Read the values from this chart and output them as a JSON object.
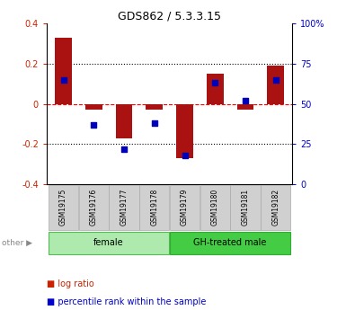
{
  "title": "GDS862 / 5.3.3.15",
  "samples": [
    "GSM19175",
    "GSM19176",
    "GSM19177",
    "GSM19178",
    "GSM19179",
    "GSM19180",
    "GSM19181",
    "GSM19182"
  ],
  "log_ratio": [
    0.33,
    -0.03,
    -0.17,
    -0.03,
    -0.27,
    0.15,
    -0.03,
    0.19
  ],
  "percentile": [
    65,
    37,
    22,
    38,
    18,
    63,
    52,
    65
  ],
  "groups": [
    {
      "label": "female",
      "start": 0,
      "end": 4,
      "color": "#aeeaae",
      "edge_color": "#55bb55"
    },
    {
      "label": "GH-treated male",
      "start": 4,
      "end": 8,
      "color": "#44cc44",
      "edge_color": "#33aa33"
    }
  ],
  "bar_color": "#aa1111",
  "dot_color": "#0000bb",
  "ylim_left": [
    -0.4,
    0.4
  ],
  "ylim_right": [
    0,
    100
  ],
  "yticks_left": [
    -0.4,
    -0.2,
    0.0,
    0.2,
    0.4
  ],
  "ytick_labels_left": [
    "-0.4",
    "-0.2",
    "0",
    "0.2",
    "0.4"
  ],
  "yticks_right": [
    0,
    25,
    50,
    75,
    100
  ],
  "ytick_labels_right": [
    "0",
    "25",
    "50",
    "75",
    "100%"
  ],
  "left_tick_color": "#cc2200",
  "right_tick_color": "#0000cc",
  "bar_width": 0.55,
  "dot_size": 20,
  "legend_items": [
    {
      "label": "log ratio",
      "color": "#cc2200"
    },
    {
      "label": "percentile rank within the sample",
      "color": "#0000cc"
    }
  ],
  "other_label": "other",
  "sample_box_color": "#d0d0d0",
  "sample_box_edge": "#aaaaaa"
}
